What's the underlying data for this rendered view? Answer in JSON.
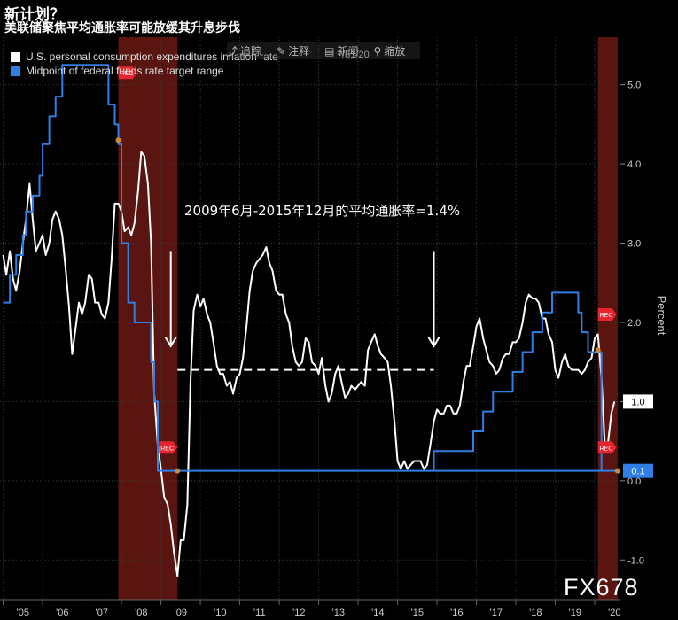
{
  "header": {
    "title": "新计划？",
    "subtitle": "美联储聚焦平均通胀率可能放缓其升息步伐"
  },
  "toolbar": {
    "items": [
      {
        "icon": "share-icon",
        "label": "追踪"
      },
      {
        "icon": "edit-icon",
        "label": "注释"
      },
      {
        "icon": "news-icon",
        "label": "新闻"
      },
      {
        "icon": "zoom-icon",
        "label": "缩放"
      }
    ],
    "date": "7/31/20"
  },
  "watermark": "FX678",
  "chart_data": {
    "type": "line",
    "title": "美联储聚焦平均通胀率可能放缓其升息步伐",
    "ylabel": "Percent",
    "ylim": [
      -1.5,
      5.6
    ],
    "xlim": [
      2004.92,
      2020.65
    ],
    "yticks": [
      -1.0,
      0.0,
      1.0,
      2.0,
      3.0,
      4.0,
      5.0
    ],
    "ytick_labels": [
      "-1.0",
      "0.0",
      "1.0",
      "2.0",
      "3.0",
      "4.0",
      "5.0"
    ],
    "xticks": [
      2005.5,
      2006.5,
      2007.5,
      2008.5,
      2009.5,
      2010.5,
      2011.5,
      2012.5,
      2013.5,
      2014.5,
      2015.5,
      2016.5,
      2017.5,
      2018.5,
      2019.5,
      2020.5
    ],
    "xtick_labels": [
      "'05",
      "'06",
      "'07",
      "'08",
      "'09",
      "'10",
      "'11",
      "'12",
      "'13",
      "'14",
      "'15",
      "'16",
      "'17",
      "'18",
      "'19",
      "'20"
    ],
    "grid": true,
    "legend_position": "top-left",
    "recessions": [
      {
        "start": 2007.92,
        "end": 2009.42,
        "label": "REC"
      },
      {
        "start": 2020.08,
        "end": 2020.58,
        "label": "REC"
      }
    ],
    "annotation": {
      "text": "2009年6月-2015年12月的平均通胀率=1.4%",
      "x_start": 2009.42,
      "x_end": 2015.92,
      "value": 1.4
    },
    "arrows": [
      {
        "x": 2009.25,
        "y_top": 2.9,
        "y_bottom": 1.7
      },
      {
        "x": 2015.92,
        "y_top": 2.9,
        "y_bottom": 1.7
      }
    ],
    "last_value_labels": [
      {
        "series": "U.S. personal consumption expenditures inflation rate",
        "label": "1.0"
      },
      {
        "series": "Midpoint of federal funds rate target range",
        "label": "0.1"
      }
    ],
    "series": [
      {
        "name": "U.S. personal consumption expenditures inflation rate",
        "color": "#ffffff",
        "points": [
          [
            2005.0,
            2.85
          ],
          [
            2005.08,
            2.6
          ],
          [
            2005.17,
            2.9
          ],
          [
            2005.25,
            2.55
          ],
          [
            2005.33,
            2.4
          ],
          [
            2005.42,
            2.65
          ],
          [
            2005.5,
            3.0
          ],
          [
            2005.58,
            3.3
          ],
          [
            2005.67,
            3.75
          ],
          [
            2005.75,
            3.3
          ],
          [
            2005.83,
            2.9
          ],
          [
            2005.92,
            3.0
          ],
          [
            2006.0,
            3.1
          ],
          [
            2006.08,
            2.85
          ],
          [
            2006.17,
            3.0
          ],
          [
            2006.25,
            3.3
          ],
          [
            2006.33,
            3.4
          ],
          [
            2006.42,
            3.3
          ],
          [
            2006.5,
            3.1
          ],
          [
            2006.58,
            2.7
          ],
          [
            2006.67,
            2.2
          ],
          [
            2006.75,
            1.6
          ],
          [
            2006.83,
            1.9
          ],
          [
            2006.92,
            2.25
          ],
          [
            2007.0,
            2.1
          ],
          [
            2007.08,
            2.25
          ],
          [
            2007.17,
            2.6
          ],
          [
            2007.25,
            2.55
          ],
          [
            2007.33,
            2.25
          ],
          [
            2007.42,
            2.25
          ],
          [
            2007.5,
            2.1
          ],
          [
            2007.58,
            2.05
          ],
          [
            2007.67,
            2.25
          ],
          [
            2007.75,
            2.8
          ],
          [
            2007.83,
            3.5
          ],
          [
            2007.92,
            3.5
          ],
          [
            2008.0,
            3.4
          ],
          [
            2008.08,
            3.15
          ],
          [
            2008.17,
            3.2
          ],
          [
            2008.25,
            3.1
          ],
          [
            2008.33,
            3.25
          ],
          [
            2008.42,
            3.65
          ],
          [
            2008.5,
            4.15
          ],
          [
            2008.58,
            4.1
          ],
          [
            2008.67,
            3.75
          ],
          [
            2008.75,
            3.0
          ],
          [
            2008.83,
            1.1
          ],
          [
            2008.92,
            0.45
          ],
          [
            2009.0,
            0.15
          ],
          [
            2009.08,
            -0.2
          ],
          [
            2009.17,
            -0.3
          ],
          [
            2009.25,
            -0.55
          ],
          [
            2009.33,
            -0.9
          ],
          [
            2009.42,
            -1.2
          ],
          [
            2009.5,
            -0.75
          ],
          [
            2009.58,
            -0.75
          ],
          [
            2009.67,
            -0.3
          ],
          [
            2009.75,
            1.25
          ],
          [
            2009.83,
            2.15
          ],
          [
            2009.92,
            2.35
          ],
          [
            2010.0,
            2.2
          ],
          [
            2010.08,
            2.3
          ],
          [
            2010.17,
            2.1
          ],
          [
            2010.25,
            2.0
          ],
          [
            2010.33,
            1.75
          ],
          [
            2010.42,
            1.45
          ],
          [
            2010.5,
            1.35
          ],
          [
            2010.58,
            1.35
          ],
          [
            2010.67,
            1.2
          ],
          [
            2010.75,
            1.25
          ],
          [
            2010.83,
            1.1
          ],
          [
            2010.92,
            1.3
          ],
          [
            2011.0,
            1.35
          ],
          [
            2011.08,
            1.55
          ],
          [
            2011.17,
            1.95
          ],
          [
            2011.25,
            2.4
          ],
          [
            2011.33,
            2.65
          ],
          [
            2011.42,
            2.75
          ],
          [
            2011.5,
            2.8
          ],
          [
            2011.58,
            2.85
          ],
          [
            2011.67,
            2.95
          ],
          [
            2011.75,
            2.75
          ],
          [
            2011.83,
            2.65
          ],
          [
            2011.92,
            2.4
          ],
          [
            2012.0,
            2.35
          ],
          [
            2012.08,
            2.35
          ],
          [
            2012.17,
            2.1
          ],
          [
            2012.25,
            2.0
          ],
          [
            2012.33,
            1.7
          ],
          [
            2012.42,
            1.5
          ],
          [
            2012.5,
            1.45
          ],
          [
            2012.58,
            1.5
          ],
          [
            2012.67,
            1.8
          ],
          [
            2012.75,
            1.75
          ],
          [
            2012.83,
            1.5
          ],
          [
            2012.92,
            1.45
          ],
          [
            2013.0,
            1.35
          ],
          [
            2013.08,
            1.55
          ],
          [
            2013.17,
            1.2
          ],
          [
            2013.25,
            1.0
          ],
          [
            2013.33,
            1.1
          ],
          [
            2013.42,
            1.35
          ],
          [
            2013.5,
            1.45
          ],
          [
            2013.58,
            1.25
          ],
          [
            2013.67,
            1.05
          ],
          [
            2013.75,
            1.1
          ],
          [
            2013.83,
            1.2
          ],
          [
            2013.92,
            1.15
          ],
          [
            2014.0,
            1.2
          ],
          [
            2014.08,
            1.25
          ],
          [
            2014.17,
            1.2
          ],
          [
            2014.25,
            1.65
          ],
          [
            2014.33,
            1.75
          ],
          [
            2014.42,
            1.85
          ],
          [
            2014.5,
            1.7
          ],
          [
            2014.58,
            1.6
          ],
          [
            2014.67,
            1.55
          ],
          [
            2014.75,
            1.5
          ],
          [
            2014.83,
            1.2
          ],
          [
            2014.92,
            0.75
          ],
          [
            2015.0,
            0.25
          ],
          [
            2015.08,
            0.15
          ],
          [
            2015.17,
            0.25
          ],
          [
            2015.25,
            0.15
          ],
          [
            2015.33,
            0.2
          ],
          [
            2015.42,
            0.25
          ],
          [
            2015.5,
            0.25
          ],
          [
            2015.58,
            0.25
          ],
          [
            2015.67,
            0.15
          ],
          [
            2015.75,
            0.2
          ],
          [
            2015.83,
            0.45
          ],
          [
            2015.92,
            0.75
          ],
          [
            2016.0,
            0.9
          ],
          [
            2016.08,
            0.85
          ],
          [
            2016.17,
            0.85
          ],
          [
            2016.25,
            0.95
          ],
          [
            2016.33,
            0.95
          ],
          [
            2016.42,
            0.85
          ],
          [
            2016.5,
            0.85
          ],
          [
            2016.58,
            0.95
          ],
          [
            2016.67,
            1.25
          ],
          [
            2016.75,
            1.45
          ],
          [
            2016.83,
            1.45
          ],
          [
            2016.92,
            1.7
          ],
          [
            2017.0,
            1.95
          ],
          [
            2017.08,
            2.05
          ],
          [
            2017.17,
            1.8
          ],
          [
            2017.25,
            1.65
          ],
          [
            2017.33,
            1.5
          ],
          [
            2017.42,
            1.45
          ],
          [
            2017.5,
            1.35
          ],
          [
            2017.58,
            1.4
          ],
          [
            2017.67,
            1.55
          ],
          [
            2017.75,
            1.6
          ],
          [
            2017.83,
            1.6
          ],
          [
            2017.92,
            1.75
          ],
          [
            2018.0,
            1.75
          ],
          [
            2018.08,
            1.8
          ],
          [
            2018.17,
            2.0
          ],
          [
            2018.25,
            2.25
          ],
          [
            2018.33,
            2.35
          ],
          [
            2018.42,
            2.3
          ],
          [
            2018.5,
            2.3
          ],
          [
            2018.58,
            2.25
          ],
          [
            2018.67,
            2.05
          ],
          [
            2018.75,
            2.05
          ],
          [
            2018.83,
            1.85
          ],
          [
            2018.92,
            1.75
          ],
          [
            2019.0,
            1.4
          ],
          [
            2019.08,
            1.3
          ],
          [
            2019.17,
            1.5
          ],
          [
            2019.25,
            1.6
          ],
          [
            2019.33,
            1.45
          ],
          [
            2019.42,
            1.4
          ],
          [
            2019.5,
            1.4
          ],
          [
            2019.58,
            1.4
          ],
          [
            2019.67,
            1.35
          ],
          [
            2019.75,
            1.4
          ],
          [
            2019.83,
            1.5
          ],
          [
            2019.92,
            1.55
          ],
          [
            2020.0,
            1.8
          ],
          [
            2020.08,
            1.85
          ],
          [
            2020.17,
            1.3
          ],
          [
            2020.25,
            0.5
          ],
          [
            2020.33,
            0.45
          ],
          [
            2020.42,
            0.85
          ],
          [
            2020.5,
            1.0
          ]
        ]
      },
      {
        "name": "Midpoint of federal funds rate target range",
        "color": "#2f7fe6",
        "step": true,
        "points": [
          [
            2005.0,
            2.25
          ],
          [
            2005.17,
            2.6
          ],
          [
            2005.33,
            2.85
          ],
          [
            2005.5,
            3.1
          ],
          [
            2005.58,
            3.4
          ],
          [
            2005.75,
            3.6
          ],
          [
            2005.92,
            3.85
          ],
          [
            2006.0,
            4.25
          ],
          [
            2006.17,
            4.6
          ],
          [
            2006.33,
            4.85
          ],
          [
            2006.5,
            5.25
          ],
          [
            2007.67,
            4.75
          ],
          [
            2007.83,
            4.5
          ],
          [
            2007.92,
            4.25
          ],
          [
            2008.0,
            3.0
          ],
          [
            2008.17,
            2.25
          ],
          [
            2008.33,
            2.0
          ],
          [
            2008.75,
            1.5
          ],
          [
            2008.83,
            1.0
          ],
          [
            2008.92,
            0.125
          ],
          [
            2020.17,
            0.125
          ],
          [
            2015.92,
            0.375
          ],
          [
            2016.92,
            0.625
          ],
          [
            2017.17,
            0.875
          ],
          [
            2017.42,
            1.125
          ],
          [
            2017.92,
            1.375
          ],
          [
            2018.17,
            1.625
          ],
          [
            2018.42,
            1.875
          ],
          [
            2018.67,
            2.125
          ],
          [
            2018.92,
            2.375
          ],
          [
            2019.58,
            2.125
          ],
          [
            2019.67,
            1.875
          ],
          [
            2019.83,
            1.625
          ],
          [
            2020.17,
            0.125
          ],
          [
            2020.58,
            0.125
          ]
        ]
      }
    ]
  }
}
